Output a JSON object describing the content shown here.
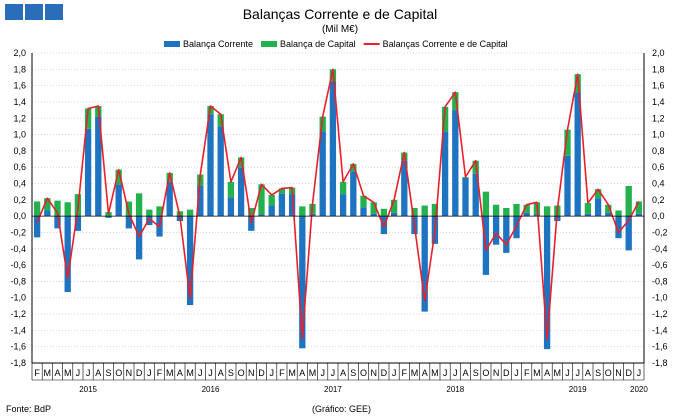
{
  "header": {
    "logo_blocks": 3,
    "logo_color": "#2a6db8"
  },
  "chart_data": {
    "type": "bar",
    "title": "Balanças Corrente e de Capital",
    "subtitle": "(Mil M€)",
    "ylim": [
      -1.8,
      2.0
    ],
    "y_ticks": [
      "2,0",
      "1,8",
      "1,6",
      "1,4",
      "1,2",
      "1,0",
      "0,8",
      "0,6",
      "0,4",
      "0,2",
      "0,0",
      "-0,2",
      "-0,4",
      "-0,6",
      "-0,8",
      "-1,0",
      "-1,2",
      "-1,4",
      "-1,6",
      "-1,8"
    ],
    "grid": true,
    "legend_position": "top",
    "stacked": true,
    "month_labels": [
      "F",
      "M",
      "A",
      "M",
      "J",
      "J",
      "A",
      "S",
      "O",
      "N",
      "D",
      "J",
      "F",
      "M",
      "A",
      "M",
      "J",
      "J",
      "A",
      "S",
      "O",
      "N",
      "D",
      "J",
      "F",
      "M",
      "A",
      "M",
      "J",
      "J",
      "A",
      "S",
      "O",
      "N",
      "D",
      "J",
      "F",
      "M",
      "A",
      "M",
      "J",
      "J",
      "A",
      "S",
      "O",
      "N",
      "D",
      "J",
      "F",
      "M",
      "A",
      "M",
      "J",
      "J",
      "A",
      "S",
      "O",
      "N",
      "D",
      "J"
    ],
    "year_labels": [
      {
        "label": "2015",
        "index": 5
      },
      {
        "label": "2016",
        "index": 17
      },
      {
        "label": "2017",
        "index": 29
      },
      {
        "label": "2018",
        "index": 41
      },
      {
        "label": "2019",
        "index": 53
      },
      {
        "label": "2020",
        "index": 59
      }
    ],
    "series": [
      {
        "name": "Balança Corrente",
        "color": "#1f74c2",
        "values": [
          -0.26,
          0.07,
          -0.15,
          -0.93,
          -0.18,
          1.07,
          1.22,
          -0.02,
          0.39,
          -0.15,
          -0.53,
          -0.11,
          -0.25,
          0.42,
          -0.06,
          -1.09,
          0.37,
          1.25,
          1.1,
          0.23,
          0.6,
          -0.18,
          0.02,
          0.13,
          0.28,
          0.27,
          -1.62,
          0.03,
          1.04,
          1.65,
          0.27,
          0.55,
          0.11,
          0.03,
          -0.22,
          0.04,
          0.68,
          -0.22,
          -1.17,
          -0.34,
          1.04,
          1.3,
          0.47,
          0.52,
          -0.72,
          -0.35,
          -0.45,
          -0.27,
          0.04,
          0.02,
          -1.63,
          -0.06,
          0.74,
          1.52,
          0.03,
          0.22,
          0.04,
          -0.27,
          -0.42,
          0.03
        ]
      },
      {
        "name": "Balança de Capital",
        "color": "#22b14c",
        "values": [
          0.18,
          0.15,
          0.19,
          0.17,
          0.27,
          0.25,
          0.13,
          0.05,
          0.18,
          0.18,
          0.28,
          0.08,
          0.12,
          0.11,
          0.06,
          0.08,
          0.14,
          0.1,
          0.15,
          0.19,
          0.12,
          0.1,
          0.37,
          0.13,
          0.06,
          0.08,
          0.12,
          0.12,
          0.18,
          0.15,
          0.15,
          0.09,
          0.14,
          0.14,
          0.09,
          0.16,
          0.1,
          0.1,
          0.13,
          0.15,
          0.3,
          0.22,
          0.01,
          0.16,
          0.3,
          0.14,
          0.1,
          0.15,
          0.1,
          0.15,
          0.12,
          0.13,
          0.32,
          0.22,
          0.13,
          0.11,
          0.1,
          0.07,
          0.37,
          0.15
        ]
      },
      {
        "name": "Balanças Corrente e de Capital",
        "color": "#e8202a",
        "type": "line",
        "values": [
          -0.08,
          0.22,
          0.04,
          -0.76,
          0.09,
          1.32,
          1.35,
          0.03,
          0.57,
          0.03,
          -0.25,
          -0.03,
          -0.13,
          0.53,
          0.0,
          -1.01,
          0.51,
          1.35,
          1.25,
          0.42,
          0.72,
          -0.08,
          0.39,
          0.26,
          0.34,
          0.35,
          -1.5,
          0.15,
          1.22,
          1.8,
          0.42,
          0.64,
          0.25,
          0.17,
          -0.13,
          0.2,
          0.78,
          -0.12,
          -1.04,
          -0.19,
          1.34,
          1.52,
          0.48,
          0.68,
          -0.42,
          -0.21,
          -0.35,
          -0.12,
          0.14,
          0.17,
          -1.51,
          0.07,
          1.06,
          1.74,
          0.16,
          0.33,
          0.14,
          -0.2,
          -0.05,
          0.18
        ]
      }
    ]
  },
  "footer": {
    "source": "Fonte: BdP",
    "credit": "(Gráfico: GEE)"
  }
}
